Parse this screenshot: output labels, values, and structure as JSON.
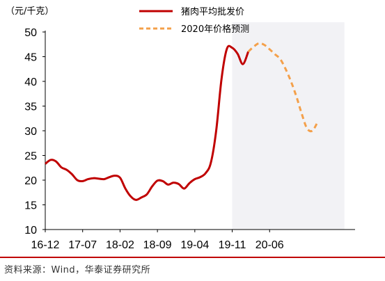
{
  "source_text": "资料来源：Wind，华泰证券研究所",
  "chart_data": {
    "type": "line",
    "unit_label": "（元/千克）",
    "ylim": [
      10,
      50
    ],
    "yticks": [
      10,
      15,
      20,
      25,
      30,
      35,
      40,
      45,
      50
    ],
    "xlim": [
      "2016-12",
      "2021-10"
    ],
    "xticks": [
      "16-12",
      "17-07",
      "18-02",
      "18-09",
      "19-04",
      "19-11",
      "20-06"
    ],
    "grid": false,
    "legend_position": "top",
    "forecast_shading": {
      "from": "2019-11",
      "to": "2021-08",
      "color": "#f2f2f5"
    },
    "series": [
      {
        "name": "猪肉平均批发价",
        "color": "#c00000",
        "style": "solid",
        "points": [
          [
            "2016-12",
            23.3
          ],
          [
            "2017-01",
            24.1
          ],
          [
            "2017-02",
            23.8
          ],
          [
            "2017-03",
            22.6
          ],
          [
            "2017-04",
            22.1
          ],
          [
            "2017-05",
            21.2
          ],
          [
            "2017-06",
            20.0
          ],
          [
            "2017-07",
            19.8
          ],
          [
            "2017-08",
            20.2
          ],
          [
            "2017-09",
            20.4
          ],
          [
            "2017-10",
            20.3
          ],
          [
            "2017-11",
            20.2
          ],
          [
            "2017-12",
            20.6
          ],
          [
            "2018-01",
            20.9
          ],
          [
            "2018-02",
            20.5
          ],
          [
            "2018-03",
            18.3
          ],
          [
            "2018-04",
            16.7
          ],
          [
            "2018-05",
            16.0
          ],
          [
            "2018-06",
            16.5
          ],
          [
            "2018-07",
            17.1
          ],
          [
            "2018-08",
            18.7
          ],
          [
            "2018-09",
            19.9
          ],
          [
            "2018-10",
            19.8
          ],
          [
            "2018-11",
            19.1
          ],
          [
            "2018-12",
            19.5
          ],
          [
            "2019-01",
            19.2
          ],
          [
            "2019-02",
            18.3
          ],
          [
            "2019-03",
            19.4
          ],
          [
            "2019-04",
            20.2
          ],
          [
            "2019-05",
            20.6
          ],
          [
            "2019-06",
            21.4
          ],
          [
            "2019-07",
            23.5
          ],
          [
            "2019-08",
            30.0
          ],
          [
            "2019-09",
            40.5
          ],
          [
            "2019-10",
            46.6
          ],
          [
            "2019-11",
            46.8
          ],
          [
            "2019-12",
            45.6
          ],
          [
            "2020-01",
            43.5
          ],
          [
            "2020-02",
            46.0
          ]
        ]
      },
      {
        "name": "2020年价格预测",
        "color": "#f4a04a",
        "style": "dashed",
        "points": [
          [
            "2020-02",
            46.0
          ],
          [
            "2020-03",
            47.0
          ],
          [
            "2020-04",
            47.7
          ],
          [
            "2020-05",
            47.4
          ],
          [
            "2020-06",
            46.5
          ],
          [
            "2020-07",
            45.5
          ],
          [
            "2020-08",
            44.5
          ],
          [
            "2020-09",
            42.5
          ],
          [
            "2020-10",
            40.0
          ],
          [
            "2020-11",
            37.0
          ],
          [
            "2020-12",
            33.5
          ],
          [
            "2021-01",
            30.5
          ],
          [
            "2021-02",
            30.0
          ],
          [
            "2021-03",
            31.8
          ]
        ]
      }
    ]
  }
}
